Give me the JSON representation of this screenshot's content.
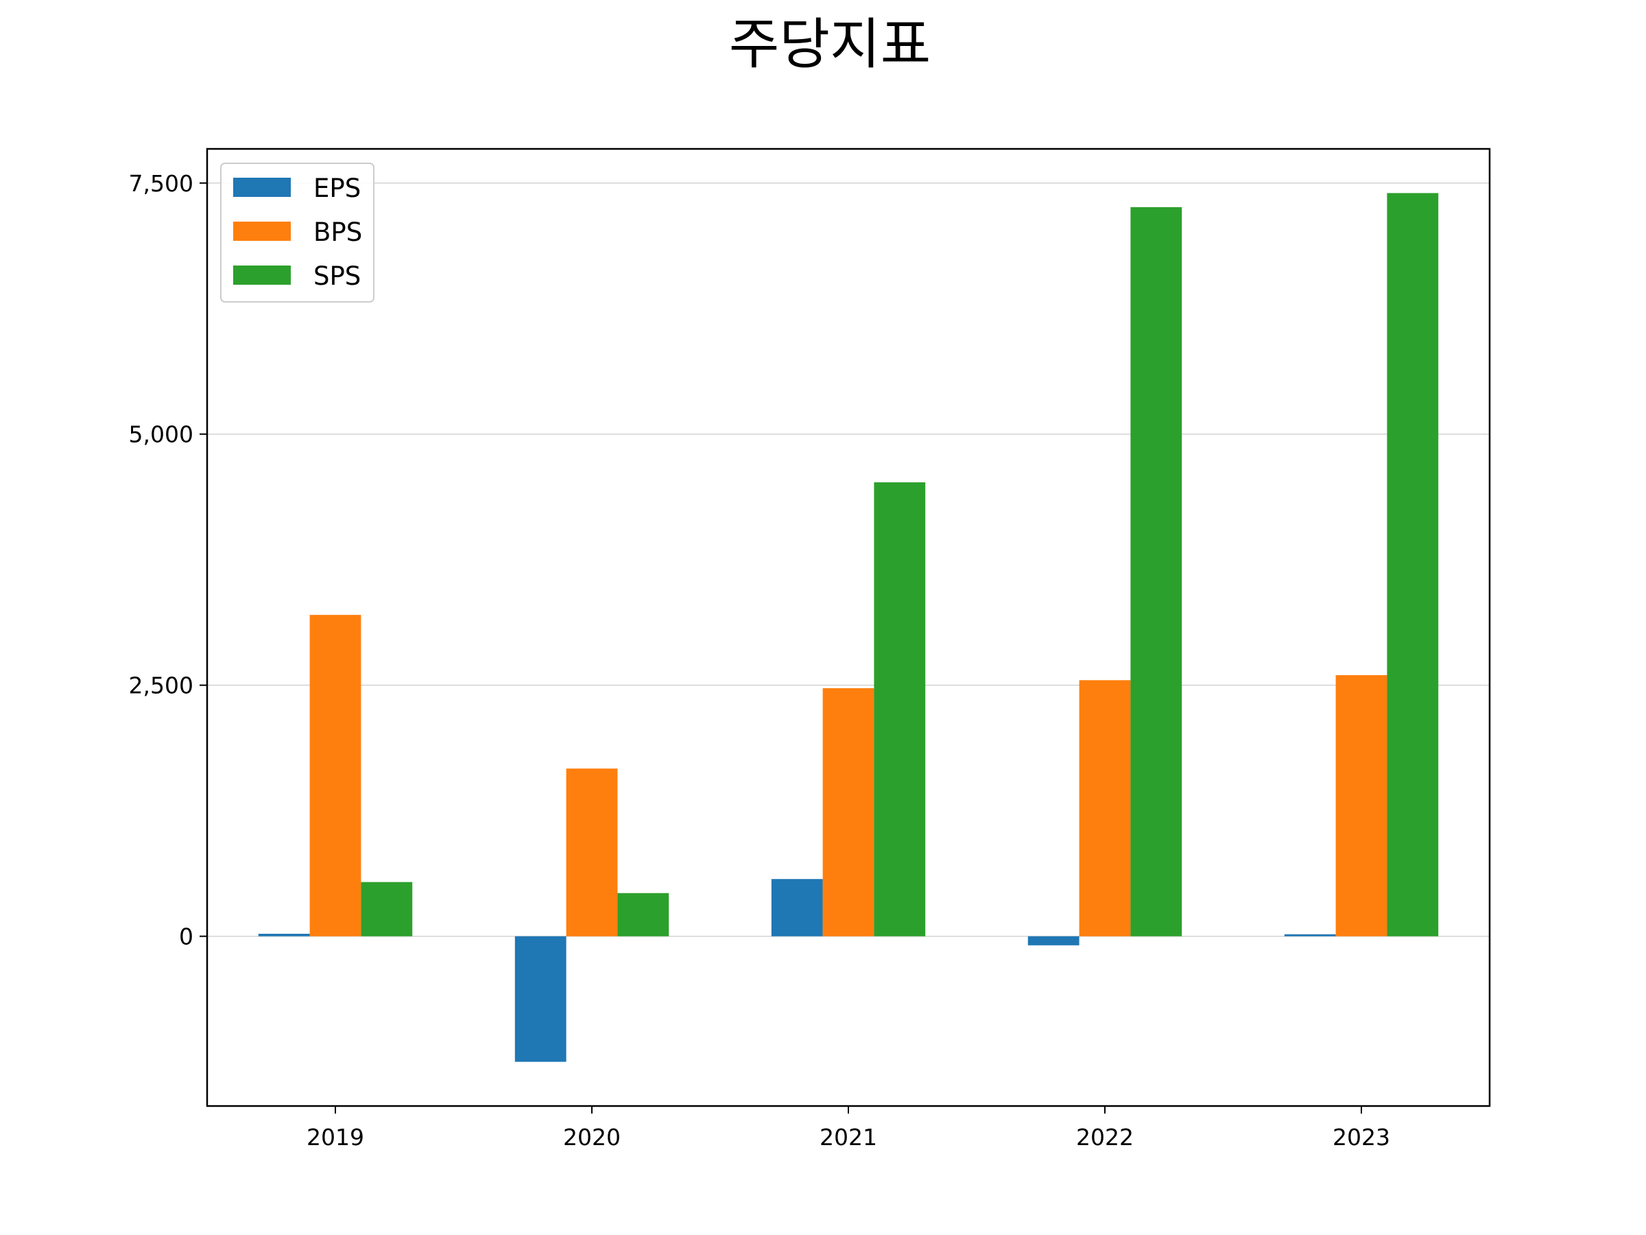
{
  "chart_data": {
    "type": "bar",
    "title": "주당지표",
    "xlabel": "",
    "ylabel": "",
    "categories": [
      "2019",
      "2020",
      "2021",
      "2022",
      "2023"
    ],
    "series": [
      {
        "name": "EPS",
        "color": "#1f77b4",
        "values": [
          25,
          -1250,
          570,
          -90,
          20
        ]
      },
      {
        "name": "BPS",
        "color": "#ff7f0e",
        "values": [
          3200,
          1670,
          2470,
          2550,
          2600
        ]
      },
      {
        "name": "SPS",
        "color": "#2ca02c",
        "values": [
          540,
          430,
          4520,
          7260,
          7400
        ]
      }
    ],
    "ylim": [
      -1690,
      7840
    ],
    "yticks": [
      0,
      2500,
      5000,
      7500
    ],
    "ytick_labels": [
      "0",
      "2,500",
      "5,000",
      "7,500"
    ],
    "grid": "horizontal",
    "grid_color": "#d3d3d3",
    "legend_position": "upper-left"
  }
}
